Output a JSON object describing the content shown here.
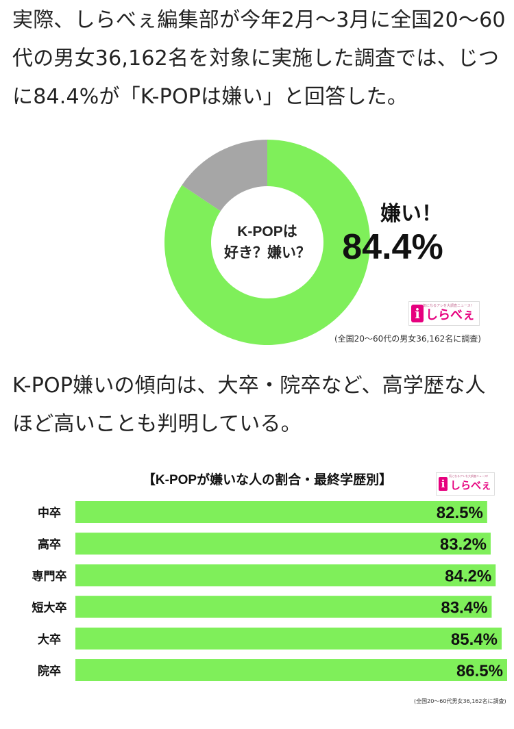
{
  "article": {
    "paragraph1": "実際、しらべぇ編集部が今年2月〜3月に全国20〜60代の男女36,162名を対象に実施した調査では、じつに84.4%が「K-POPは嫌い」と回答した。",
    "paragraph2": "K-POP嫌いの傾向は、大卒・院卒など、高学歴な人ほど高いことも判明している。"
  },
  "chart_data": [
    {
      "type": "pie",
      "donut": true,
      "center_line1": "K-POPは",
      "center_line2": "好き？嫌い？",
      "slices": [
        {
          "label": "嫌い！",
          "value": 84.4,
          "color": "#7fef5a"
        },
        {
          "label": "",
          "value": 15.6,
          "color": "#a6a6a6"
        }
      ],
      "callout_label": "嫌い！",
      "callout_value": "84.4%",
      "source_note": "(全国20〜60代の男女36,162名に調査)"
    },
    {
      "type": "bar",
      "orientation": "horizontal",
      "title": "【K-POPが嫌いな人の割合・最終学歴別】",
      "categories": [
        "中卒",
        "高卒",
        "専門卒",
        "短大卒",
        "大卒",
        "院卒"
      ],
      "values": [
        82.5,
        83.2,
        84.2,
        83.4,
        85.4,
        86.5
      ],
      "value_labels": [
        "82.5%",
        "83.2%",
        "84.2%",
        "83.4%",
        "85.4%",
        "86.5%"
      ],
      "xlim": [
        0,
        86.5
      ],
      "bar_color": "#7fef5a",
      "source_note": "(全国20〜60代男女36,162名に調査)"
    }
  ],
  "logo": {
    "name": "しらべぇ",
    "badge": "i",
    "tagline": "気になるアレを大調査ニュース！"
  }
}
